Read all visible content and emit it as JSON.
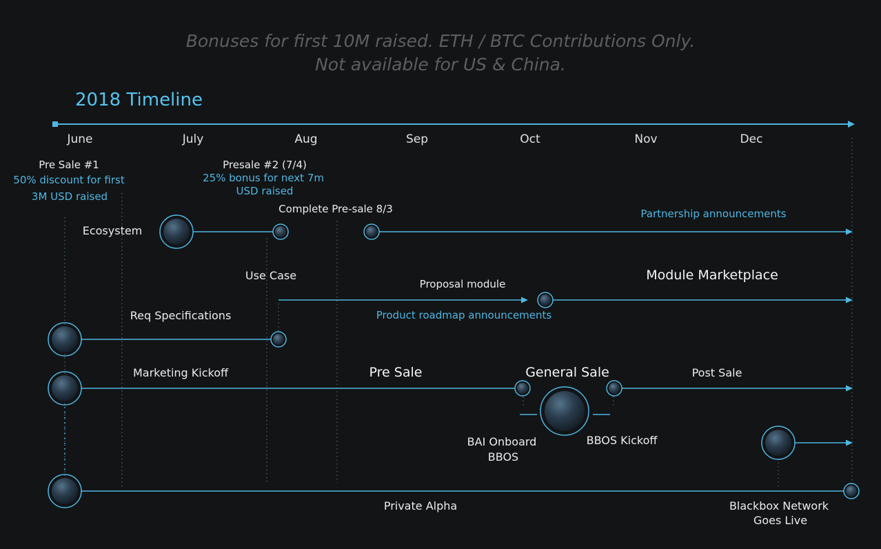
{
  "header": {
    "line1": "Bonuses for first 10M raised. ETH / BTC Contributions Only.",
    "line2": "Not available for US & China."
  },
  "title": "2018 Timeline",
  "months": [
    "June",
    "July",
    "Aug",
    "Sep",
    "Oct",
    "Nov",
    "Dec"
  ],
  "presale1": {
    "title": "Pre Sale #1",
    "detail1": "50% discount for first",
    "detail2": "3M USD raised"
  },
  "presale2": {
    "title": "Presale #2 (7/4)",
    "detail1": "25% bonus for next 7m",
    "detail2": "USD raised"
  },
  "labels": {
    "complete_presale": "Complete Pre-sale 8/3",
    "partnership": "Partnership announcements",
    "ecosystem": "Ecosystem",
    "use_case": "Use Case",
    "proposal_module": "Proposal module",
    "module_marketplace": "Module Marketplace",
    "req_specs": "Req Specifications",
    "product_roadmap": "Product roadmap announcements",
    "marketing_kickoff": "Marketing Kickoff",
    "pre_sale": "Pre Sale",
    "general_sale": "General Sale",
    "post_sale": "Post Sale",
    "bai_onboard_1": "BAI Onboard",
    "bai_onboard_2": "BBOS",
    "bbos_kickoff": "BBOS Kickoff",
    "private_alpha": "Private Alpha",
    "blackbox_1": "Blackbox Network",
    "blackbox_2": "Goes Live"
  },
  "colors": {
    "background": "#121416",
    "accent": "#57c3ee",
    "header_text": "#5e5e5e",
    "text": "#ececec"
  }
}
